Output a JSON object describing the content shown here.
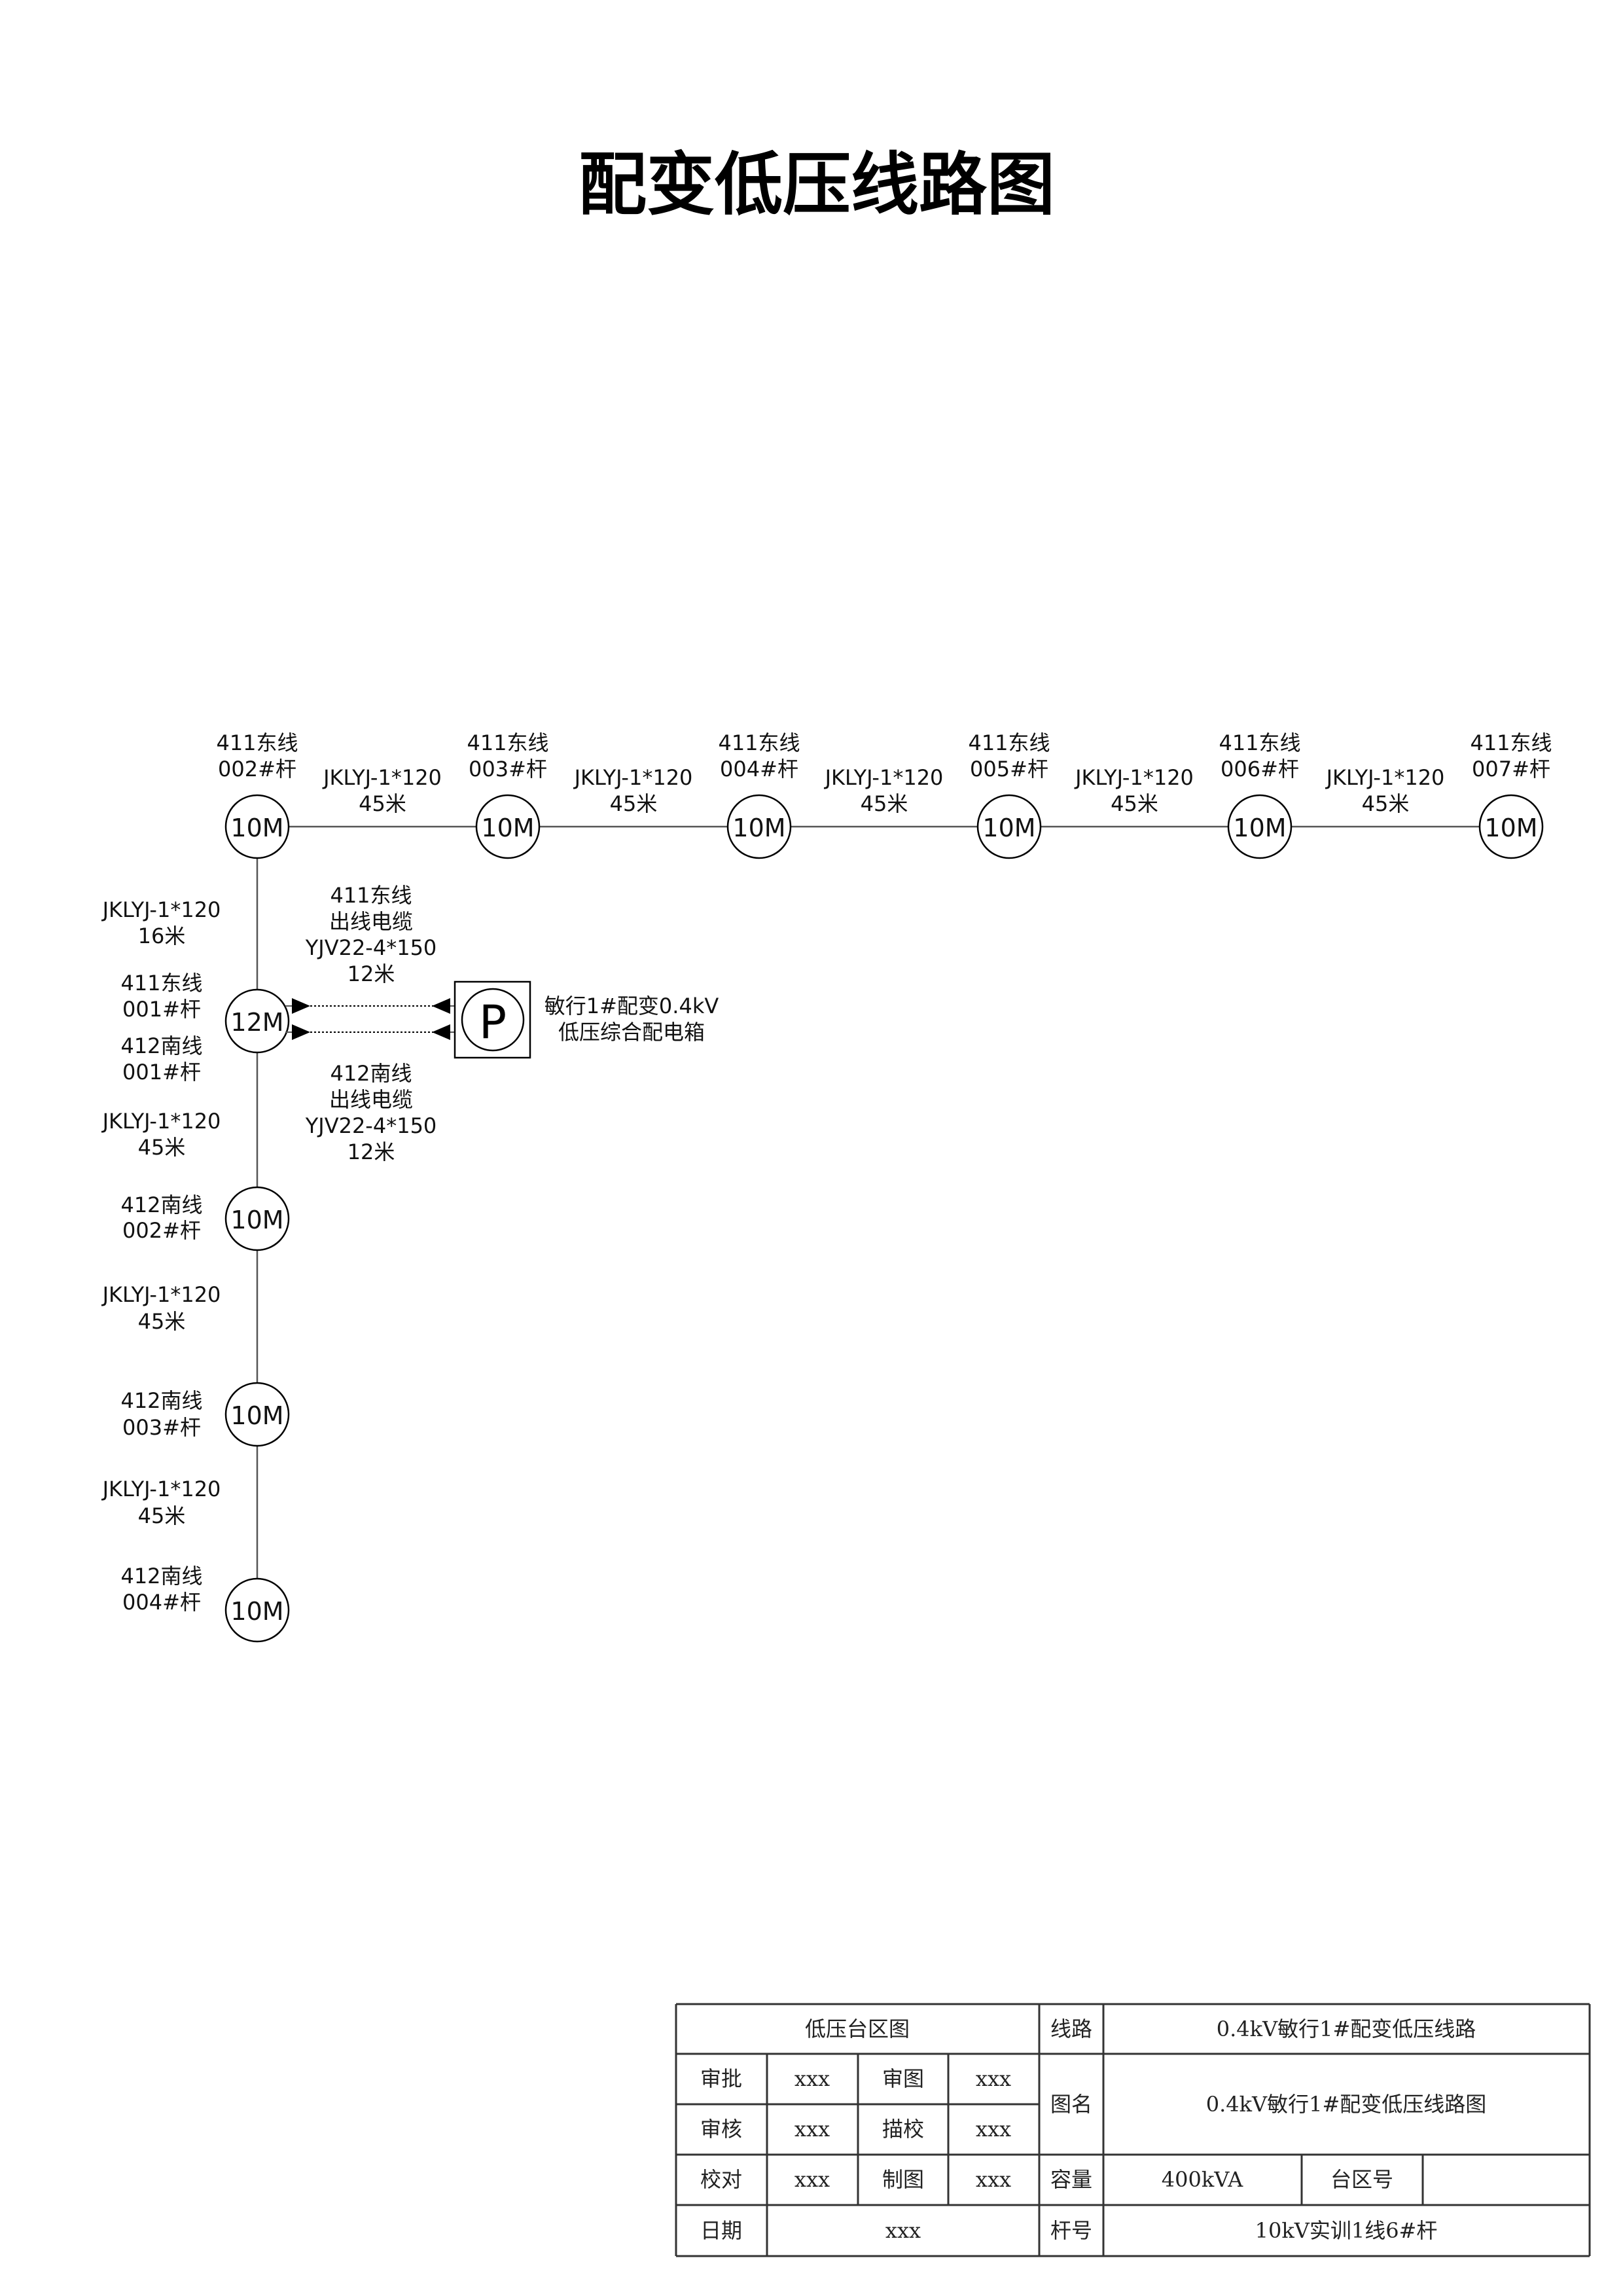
{
  "title": "配变低压线路图",
  "top_poles": [
    {
      "line": "411东线",
      "pole": "002#杆",
      "height": "10M"
    },
    {
      "line": "411东线",
      "pole": "003#杆",
      "height": "10M"
    },
    {
      "line": "411东线",
      "pole": "004#杆",
      "height": "10M"
    },
    {
      "line": "411东线",
      "pole": "005#杆",
      "height": "10M"
    },
    {
      "line": "411东线",
      "pole": "006#杆",
      "height": "10M"
    },
    {
      "line": "411东线",
      "pole": "007#杆",
      "height": "10M"
    }
  ],
  "top_spans": [
    {
      "cable": "JKLYJ-1*120",
      "length": "45米"
    },
    {
      "cable": "JKLYJ-1*120",
      "length": "45米"
    },
    {
      "cable": "JKLYJ-1*120",
      "length": "45米"
    },
    {
      "cable": "JKLYJ-1*120",
      "length": "45米"
    },
    {
      "cable": "JKLYJ-1*120",
      "length": "45米"
    }
  ],
  "vertical_poles": [
    {
      "labels": [
        "411东线",
        "001#杆",
        "412南线",
        "001#杆"
      ],
      "height": "12M"
    },
    {
      "labels": [
        "412南线",
        "002#杆"
      ],
      "height": "10M"
    },
    {
      "labels": [
        "412南线",
        "003#杆"
      ],
      "height": "10M"
    },
    {
      "labels": [
        "412南线",
        "004#杆"
      ],
      "height": "10M"
    }
  ],
  "vertical_spans": [
    {
      "cable": "JKLYJ-1*120",
      "length": "16米"
    },
    {
      "cable": "JKLYJ-1*120",
      "length": "45米"
    },
    {
      "cable": "JKLYJ-1*120",
      "length": "45米"
    },
    {
      "cable": "JKLYJ-1*120",
      "length": "45米"
    }
  ],
  "outgoing_cables": [
    {
      "line": "411东线",
      "desc": "出线电缆",
      "cable": "YJV22-4*150",
      "length": "12米"
    },
    {
      "line": "412南线",
      "desc": "出线电缆",
      "cable": "YJV22-4*150",
      "length": "12米"
    }
  ],
  "distribution_box": {
    "symbol": "P",
    "label_lines": [
      "敏行1#配变0.4kV",
      "低压综合配电箱"
    ]
  },
  "title_block": {
    "drawing_type": "低压台区图",
    "line_label": "线路",
    "line_value": "0.4kV敏行1#配变低压线路",
    "name_label": "图名",
    "name_value": "0.4kV敏行1#配变低压线路图",
    "approve_label": "审批",
    "approve_value": "xxx",
    "review_drawing_label": "审图",
    "review_drawing_value": "xxx",
    "audit_label": "审核",
    "audit_value": "xxx",
    "trace_check_label": "描校",
    "trace_check_value": "xxx",
    "proofread_label": "校对",
    "proofread_value": "xxx",
    "draw_label": "制图",
    "draw_value": "xxx",
    "capacity_label": "容量",
    "capacity_value": "400kVA",
    "area_no_label": "台区号",
    "area_no_value": "",
    "date_label": "日期",
    "date_value": "xxx",
    "pole_no_label": "杆号",
    "pole_no_value": "10kV实训1线6#杆"
  }
}
